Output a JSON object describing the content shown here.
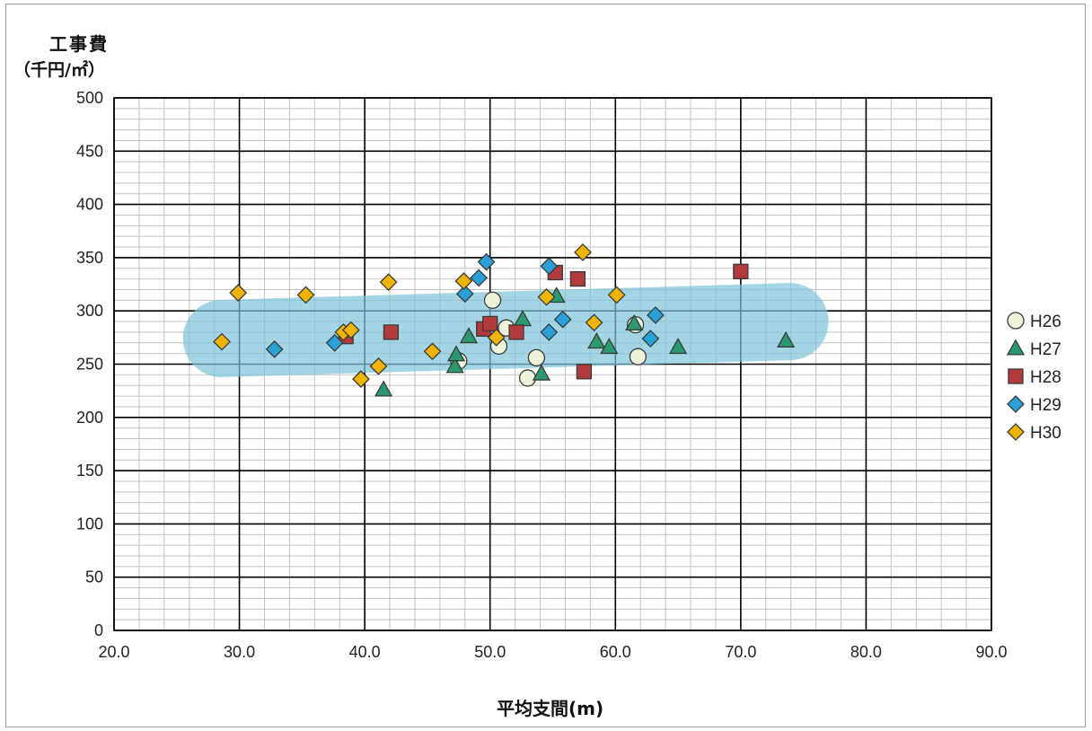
{
  "chart_data": {
    "type": "scatter",
    "title": "",
    "ylabel_line1": "工事費",
    "ylabel_line2": "（千円/㎡）",
    "xlabel": "平均支間(m)",
    "xlim": [
      20.0,
      90.0
    ],
    "ylim": [
      0,
      500
    ],
    "xticks": [
      "20.0",
      "30.0",
      "40.0",
      "50.0",
      "60.0",
      "70.0",
      "80.0",
      "90.0"
    ],
    "yticks": [
      "0",
      "50",
      "100",
      "150",
      "200",
      "250",
      "300",
      "350",
      "400",
      "450",
      "500"
    ],
    "grid": "major and minor",
    "legend_position": "right",
    "highlight_band": {
      "x_from": 25.5,
      "x_to": 77.0,
      "y_at_left": 273,
      "y_at_right": 291,
      "color": "#7cc3d9"
    },
    "series": [
      {
        "name": "H26",
        "marker": "circle",
        "color": "#eef2d8",
        "points": [
          [
            50.2,
            310
          ],
          [
            51.3,
            284
          ],
          [
            50.7,
            267
          ],
          [
            53.0,
            237
          ],
          [
            53.7,
            256
          ],
          [
            61.6,
            287
          ],
          [
            61.8,
            257
          ],
          [
            47.5,
            253
          ]
        ]
      },
      {
        "name": "H27",
        "marker": "triangle",
        "color": "#2a9a6e",
        "points": [
          [
            41.5,
            226
          ],
          [
            47.2,
            248
          ],
          [
            47.3,
            259
          ],
          [
            48.3,
            276
          ],
          [
            52.6,
            292
          ],
          [
            54.1,
            241
          ],
          [
            55.3,
            314
          ],
          [
            58.5,
            271
          ],
          [
            59.5,
            266
          ],
          [
            61.5,
            288
          ],
          [
            65.0,
            266
          ],
          [
            73.6,
            272
          ]
        ]
      },
      {
        "name": "H28",
        "marker": "square",
        "color": "#b23a3a",
        "points": [
          [
            38.5,
            276
          ],
          [
            42.1,
            280
          ],
          [
            49.5,
            283
          ],
          [
            50.0,
            288
          ],
          [
            52.1,
            280
          ],
          [
            55.2,
            336
          ],
          [
            57.0,
            330
          ],
          [
            57.5,
            243
          ],
          [
            70.0,
            337
          ]
        ]
      },
      {
        "name": "H29",
        "marker": "diamond",
        "color": "#2aa0d8",
        "points": [
          [
            32.8,
            264
          ],
          [
            37.6,
            270
          ],
          [
            48.0,
            316
          ],
          [
            49.1,
            331
          ],
          [
            49.7,
            346
          ],
          [
            54.7,
            280
          ],
          [
            54.7,
            342
          ],
          [
            55.8,
            292
          ],
          [
            62.8,
            274
          ],
          [
            63.2,
            296
          ]
        ]
      },
      {
        "name": "H30",
        "marker": "diamond",
        "color": "#f0b400",
        "points": [
          [
            28.6,
            271
          ],
          [
            29.9,
            317
          ],
          [
            35.3,
            315
          ],
          [
            38.3,
            280
          ],
          [
            38.9,
            282
          ],
          [
            39.7,
            236
          ],
          [
            41.1,
            248
          ],
          [
            41.9,
            327
          ],
          [
            45.4,
            262
          ],
          [
            47.9,
            328
          ],
          [
            50.5,
            275
          ],
          [
            54.5,
            313
          ],
          [
            57.4,
            355
          ],
          [
            58.3,
            289
          ],
          [
            60.1,
            315
          ]
        ]
      }
    ]
  }
}
